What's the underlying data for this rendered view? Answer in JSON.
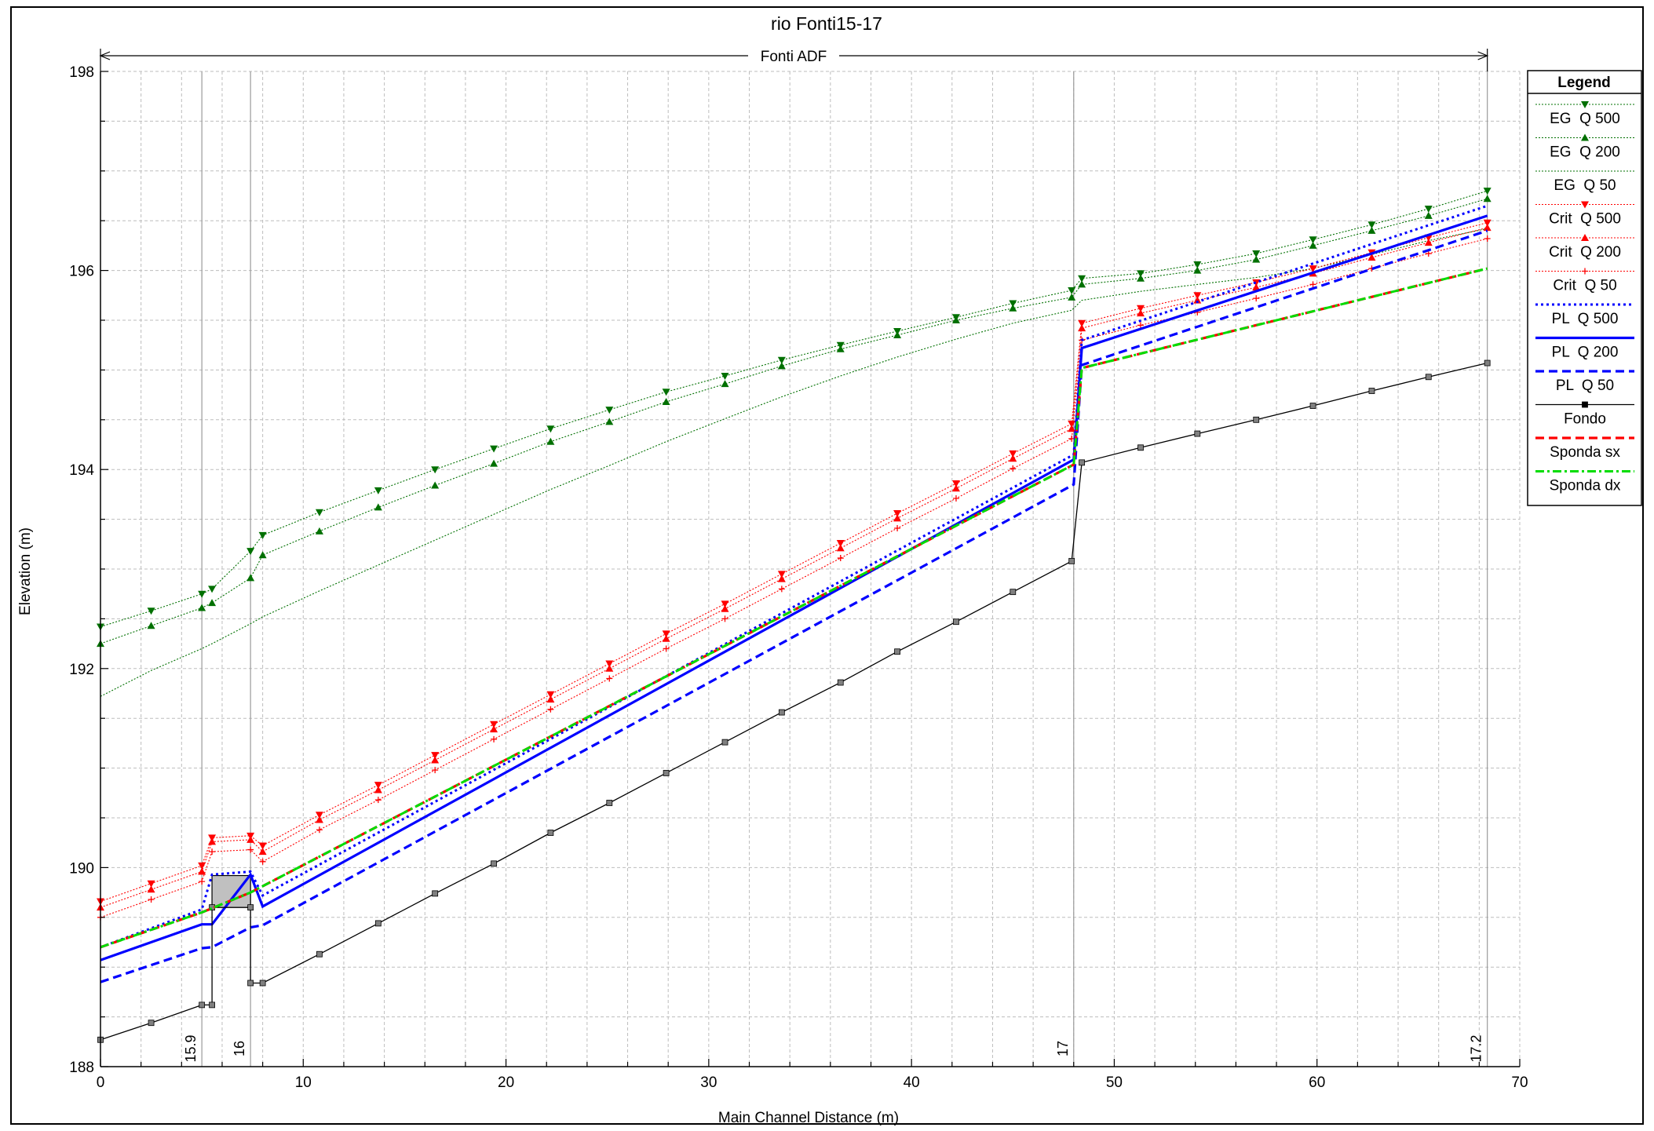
{
  "chart_data": {
    "type": "line",
    "title": "rio Fonti15-17",
    "reach_label": "Fonti ADF",
    "xlabel": "Main Channel Distance (m)",
    "ylabel": "Elevation (m)",
    "xlim": [
      0,
      70
    ],
    "ylim": [
      188,
      198
    ],
    "xticks": [
      "0",
      "10",
      "20",
      "30",
      "40",
      "50",
      "60",
      "70"
    ],
    "yticks": [
      "188",
      "190",
      "192",
      "194",
      "196",
      "198"
    ],
    "grid": true,
    "legend_title": "Legend",
    "legend_position": "right",
    "station_labels": [
      {
        "x": 5.0,
        "label": "15.9"
      },
      {
        "x": 7.4,
        "label": "16"
      },
      {
        "x": 48.0,
        "label": "17"
      },
      {
        "x": 68.4,
        "label": "17.2"
      }
    ],
    "culvert": {
      "x0": 5.5,
      "x1": 7.4,
      "y_bottom": 189.6,
      "y_top": 189.92
    },
    "series": [
      {
        "name": "EG  Q 500",
        "color": "#007000",
        "style": "dotted-thin",
        "marker": "tri-down",
        "x": [
          0,
          2.5,
          5.0,
          5.5,
          7.4,
          8.0,
          10.8,
          13.7,
          16.5,
          19.4,
          22.2,
          25.1,
          27.9,
          30.8,
          33.6,
          36.5,
          39.3,
          42.2,
          45.0,
          47.9,
          48.4,
          51.3,
          54.1,
          57.0,
          59.8,
          62.7,
          65.5,
          68.4
        ],
        "y": [
          192.42,
          192.58,
          192.75,
          192.8,
          193.18,
          193.34,
          193.57,
          193.79,
          194.0,
          194.21,
          194.41,
          194.6,
          194.78,
          194.94,
          195.1,
          195.25,
          195.39,
          195.53,
          195.67,
          195.8,
          195.92,
          195.97,
          196.06,
          196.17,
          196.31,
          196.46,
          196.62,
          196.8
        ]
      },
      {
        "name": "EG  Q 200",
        "color": "#007000",
        "style": "dotted-thin",
        "marker": "tri-up",
        "x": [
          0,
          2.5,
          5.0,
          5.5,
          7.4,
          8.0,
          10.8,
          13.7,
          16.5,
          19.4,
          22.2,
          25.1,
          27.9,
          30.8,
          33.6,
          36.5,
          39.3,
          42.2,
          45.0,
          47.9,
          48.4,
          51.3,
          54.1,
          57.0,
          59.8,
          62.7,
          65.5,
          68.4
        ],
        "y": [
          192.25,
          192.43,
          192.61,
          192.66,
          192.91,
          193.14,
          193.38,
          193.62,
          193.84,
          194.06,
          194.28,
          194.48,
          194.68,
          194.86,
          195.04,
          195.21,
          195.35,
          195.5,
          195.62,
          195.73,
          195.86,
          195.92,
          196.0,
          196.11,
          196.25,
          196.4,
          196.55,
          196.72
        ]
      },
      {
        "name": "EG  Q 50",
        "color": "#007000",
        "style": "dotted-thin",
        "marker": "none",
        "x": [
          0,
          2.5,
          5.0,
          5.5,
          7.4,
          8.0,
          10.8,
          13.7,
          16.5,
          19.4,
          22.2,
          25.1,
          27.9,
          30.8,
          33.6,
          36.5,
          39.3,
          42.2,
          45.0,
          47.9,
          48.4,
          51.3,
          54.1,
          57.0,
          59.8,
          62.7,
          65.5,
          68.4
        ],
        "y": [
          191.72,
          191.98,
          192.2,
          192.25,
          192.45,
          192.52,
          192.78,
          193.04,
          193.29,
          193.55,
          193.8,
          194.04,
          194.28,
          194.51,
          194.73,
          194.94,
          195.13,
          195.31,
          195.47,
          195.6,
          195.7,
          195.79,
          195.86,
          195.93,
          196.02,
          196.16,
          196.3,
          196.42
        ]
      },
      {
        "name": "Crit  Q 500",
        "color": "#ff0000",
        "style": "dotted-thin",
        "marker": "tri-down",
        "x": [
          0,
          2.5,
          5.0,
          5.5,
          7.4,
          8.0,
          10.8,
          13.7,
          16.5,
          19.4,
          22.2,
          25.1,
          27.9,
          30.8,
          33.6,
          36.5,
          39.3,
          42.2,
          45.0,
          47.9,
          48.4,
          51.3,
          54.1,
          57.0,
          59.8,
          62.7,
          65.5,
          68.4
        ],
        "y": [
          189.66,
          189.84,
          190.02,
          190.3,
          190.32,
          190.22,
          190.53,
          190.83,
          191.13,
          191.44,
          191.74,
          192.05,
          192.35,
          192.65,
          192.95,
          193.26,
          193.56,
          193.86,
          194.16,
          194.46,
          195.47,
          195.62,
          195.75,
          195.88,
          196.02,
          196.18,
          196.33,
          196.48
        ]
      },
      {
        "name": "Crit  Q 200",
        "color": "#ff0000",
        "style": "dotted-thin",
        "marker": "tri-up",
        "x": [
          0,
          2.5,
          5.0,
          5.5,
          7.4,
          8.0,
          10.8,
          13.7,
          16.5,
          19.4,
          22.2,
          25.1,
          27.9,
          30.8,
          33.6,
          36.5,
          39.3,
          42.2,
          45.0,
          47.9,
          48.4,
          51.3,
          54.1,
          57.0,
          59.8,
          62.7,
          65.5,
          68.4
        ],
        "y": [
          189.6,
          189.78,
          189.96,
          190.26,
          190.28,
          190.16,
          190.48,
          190.78,
          191.08,
          191.39,
          191.69,
          192.0,
          192.3,
          192.6,
          192.9,
          193.21,
          193.51,
          193.81,
          194.11,
          194.41,
          195.42,
          195.57,
          195.7,
          195.83,
          195.97,
          196.13,
          196.28,
          196.43
        ]
      },
      {
        "name": "Crit  Q 50",
        "color": "#ff0000",
        "style": "dotted-thin",
        "marker": "plus",
        "x": [
          0,
          2.5,
          5.0,
          5.5,
          7.4,
          8.0,
          10.8,
          13.7,
          16.5,
          19.4,
          22.2,
          25.1,
          27.9,
          30.8,
          33.6,
          36.5,
          39.3,
          42.2,
          45.0,
          47.9,
          48.4,
          51.3,
          54.1,
          57.0,
          59.8,
          62.7,
          65.5,
          68.4
        ],
        "y": [
          189.5,
          189.68,
          189.86,
          190.16,
          190.18,
          190.06,
          190.38,
          190.68,
          190.98,
          191.29,
          191.59,
          191.9,
          192.2,
          192.5,
          192.8,
          193.11,
          193.41,
          193.71,
          194.01,
          194.31,
          195.3,
          195.45,
          195.58,
          195.72,
          195.86,
          196.02,
          196.17,
          196.32
        ]
      },
      {
        "name": "PL  Q 500",
        "color": "#0000ff",
        "style": "dotted",
        "marker": "none",
        "x": [
          0,
          5.0,
          5.5,
          7.4,
          8.0,
          48.0,
          48.4,
          68.4
        ],
        "y": [
          189.2,
          189.58,
          189.93,
          189.96,
          189.72,
          194.15,
          195.3,
          196.65
        ]
      },
      {
        "name": "PL  Q 200",
        "color": "#0000ff",
        "style": "solid",
        "marker": "none",
        "x": [
          0,
          5.0,
          5.5,
          7.4,
          8.0,
          48.0,
          48.4,
          68.4
        ],
        "y": [
          189.07,
          189.43,
          189.43,
          189.93,
          189.61,
          194.1,
          195.22,
          196.55
        ]
      },
      {
        "name": "PL  Q 50",
        "color": "#0000ff",
        "style": "dashed",
        "marker": "none",
        "x": [
          0,
          5.0,
          5.5,
          7.4,
          8.0,
          48.0,
          48.4,
          68.4
        ],
        "y": [
          188.85,
          189.19,
          189.2,
          189.4,
          189.42,
          193.85,
          195.05,
          196.4
        ]
      },
      {
        "name": "Fondo",
        "color": "#000000",
        "style": "solid-thin",
        "marker": "square",
        "x": [
          0,
          2.5,
          5.0,
          5.5,
          5.5,
          7.4,
          7.4,
          8.0,
          10.8,
          13.7,
          16.5,
          19.4,
          22.2,
          25.1,
          27.9,
          30.8,
          33.6,
          36.5,
          39.3,
          42.2,
          45.0,
          47.9,
          48.4,
          51.3,
          54.1,
          57.0,
          59.8,
          62.7,
          65.5,
          68.4
        ],
        "y": [
          188.27,
          188.44,
          188.62,
          188.62,
          189.6,
          189.6,
          188.84,
          188.84,
          189.13,
          189.44,
          189.74,
          190.04,
          190.35,
          190.65,
          190.95,
          191.26,
          191.56,
          191.86,
          192.17,
          192.47,
          192.77,
          193.08,
          194.07,
          194.22,
          194.36,
          194.5,
          194.64,
          194.79,
          194.93,
          195.07
        ]
      },
      {
        "name": "Sponda sx",
        "color": "#ff0000",
        "style": "dashed",
        "marker": "none",
        "x": [
          0,
          5.0,
          7.4,
          48.0,
          48.4,
          68.4
        ],
        "y": [
          189.2,
          189.55,
          189.75,
          194.05,
          195.02,
          196.02
        ]
      },
      {
        "name": "Sponda dx",
        "color": "#00dd00",
        "style": "dashdot",
        "marker": "none",
        "x": [
          0,
          5.0,
          7.4,
          48.0,
          48.4,
          68.4
        ],
        "y": [
          189.2,
          189.55,
          189.75,
          194.05,
          195.02,
          196.02
        ]
      }
    ]
  }
}
